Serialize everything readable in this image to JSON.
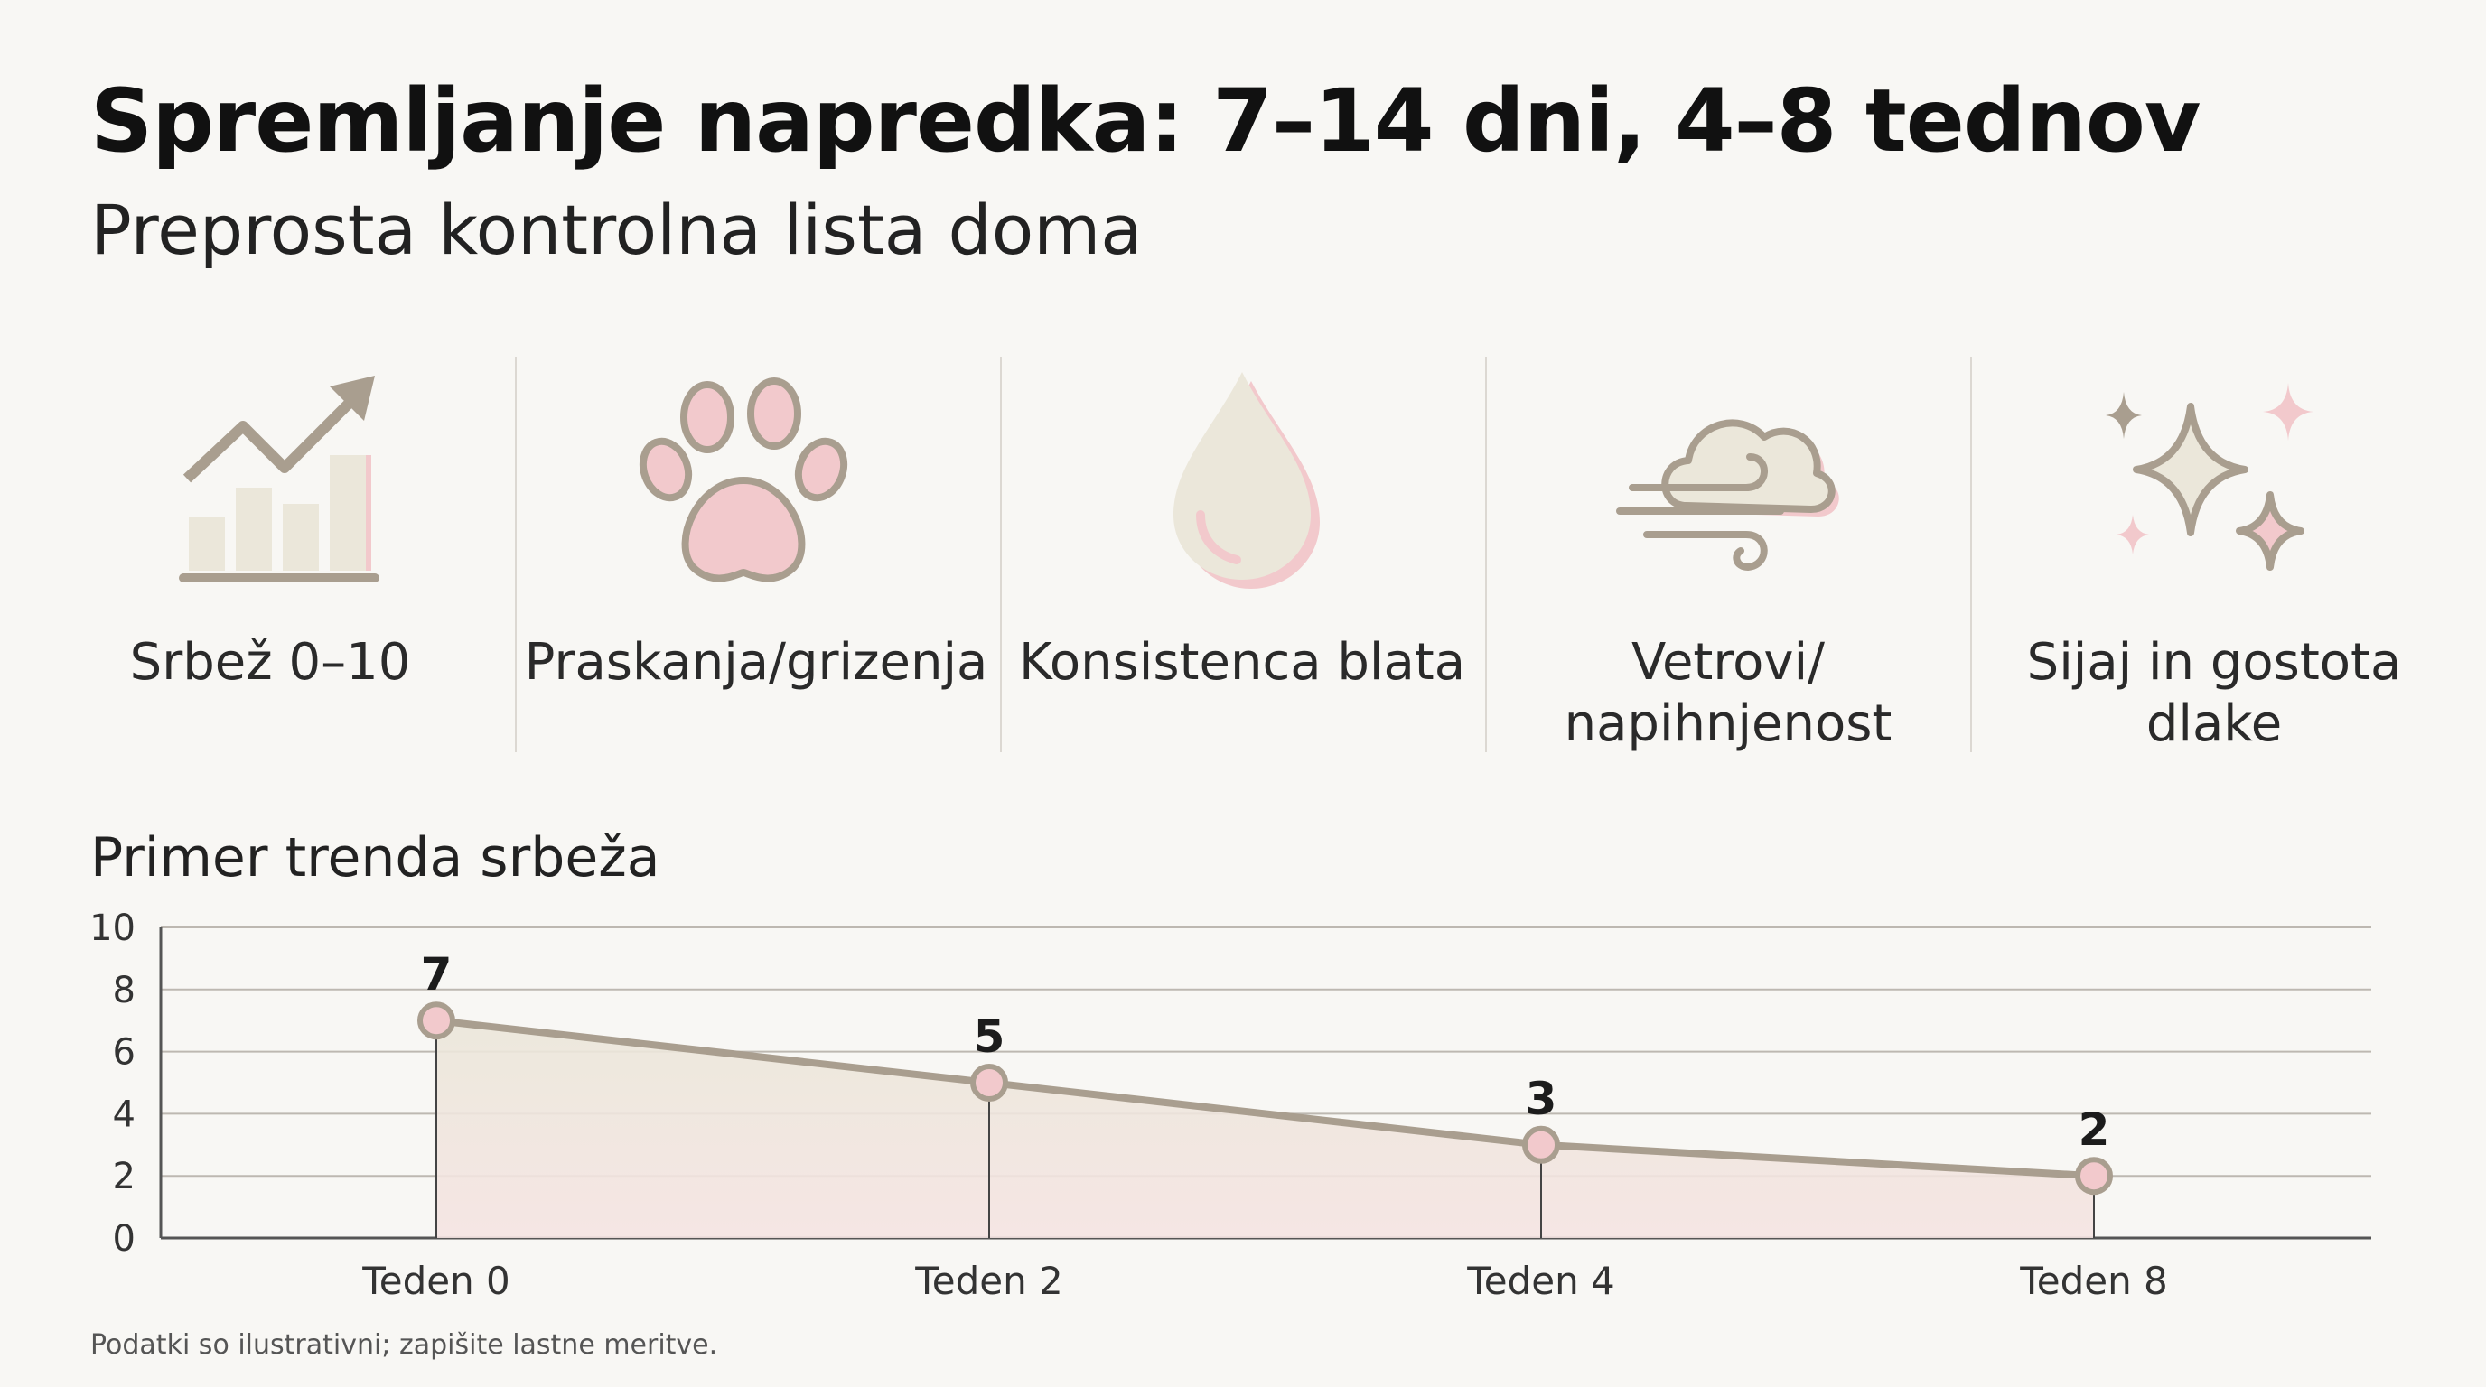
{
  "header": {
    "title": "Spremljanje napredka: 7–14 dni, 4–8 tednov",
    "subtitle": "Preprosta kontrolna lista doma"
  },
  "checklist": [
    {
      "label": "Srbež 0–10",
      "icon": "growth-chart-icon"
    },
    {
      "label": "Praskanja/grizenja",
      "icon": "paw-icon"
    },
    {
      "label": "Konsistenca blata",
      "icon": "droplet-icon"
    },
    {
      "label": "Vetrovi/ napihnjenost",
      "icon": "wind-cloud-icon"
    },
    {
      "label": "Sijaj in gostota dlake",
      "icon": "sparkles-icon"
    }
  ],
  "colors": {
    "accent_pink": "#f2c9cc",
    "neutral_taupe": "#a99e8f",
    "fill_beige": "#ebe7da"
  },
  "chart_title": "Primer trenda srbeža",
  "chart_data": {
    "type": "line",
    "title": "Primer trenda srbeža",
    "categories": [
      "Teden 0",
      "Teden 2",
      "Teden 4",
      "Teden 8"
    ],
    "values": [
      7,
      5,
      3,
      2
    ],
    "data_labels": [
      "7",
      "5",
      "3",
      "2"
    ],
    "yticks": [
      "0",
      "2",
      "4",
      "6",
      "8",
      "10"
    ],
    "ylim": [
      0,
      10
    ],
    "xlabel": "",
    "ylabel": "",
    "grid": true,
    "area_fill": true,
    "legend": "none"
  },
  "footnote": "Podatki so ilustrativni; zapišite lastne meritve."
}
